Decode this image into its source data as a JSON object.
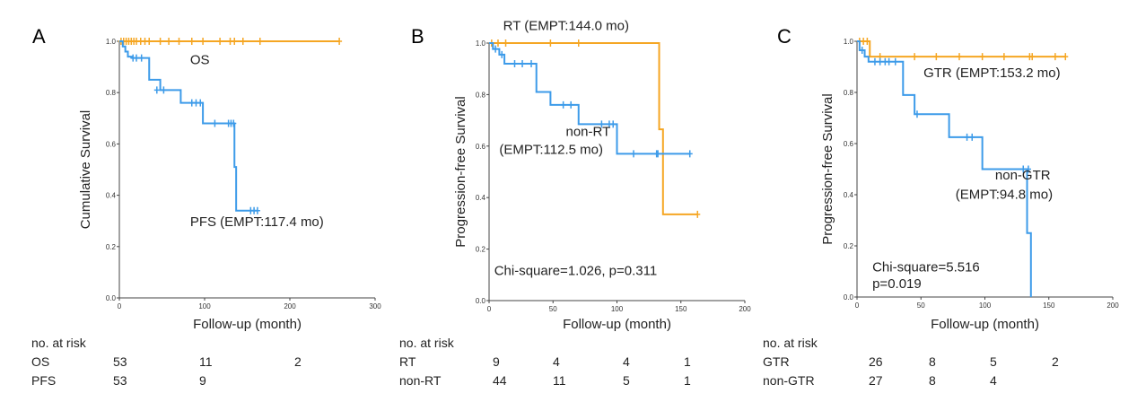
{
  "colors": {
    "orange": "#f5a623",
    "blue": "#3d9be9"
  },
  "chart_data": [
    {
      "type": "line",
      "panel_label": "A",
      "xlabel": "Follow-up (month)",
      "ylabel": "Cumulative Survival",
      "xlim": [
        0,
        300
      ],
      "ylim": [
        0.0,
        1.0
      ],
      "x_ticks": [
        0,
        100,
        200,
        300
      ],
      "x_tick_labels": [
        "0",
        "100",
        "200",
        "300"
      ],
      "y_ticks": [
        0.0,
        0.2,
        0.4,
        0.6,
        0.8,
        1.0
      ],
      "y_tick_labels": [
        "0.0",
        "0.2",
        "0.4",
        "0.6",
        "0.8",
        "1.0"
      ],
      "grid": false,
      "series": [
        {
          "name": "OS",
          "color": "orange",
          "steps": [
            [
              0,
              1.0
            ],
            [
              258,
              1.0
            ]
          ],
          "censored": [
            [
              2,
              1.0
            ],
            [
              5,
              1.0
            ],
            [
              8,
              1.0
            ],
            [
              11,
              1.0
            ],
            [
              14,
              1.0
            ],
            [
              17,
              1.0
            ],
            [
              20,
              1.0
            ],
            [
              25,
              1.0
            ],
            [
              30,
              1.0
            ],
            [
              35,
              1.0
            ],
            [
              48,
              1.0
            ],
            [
              58,
              1.0
            ],
            [
              70,
              1.0
            ],
            [
              85,
              1.0
            ],
            [
              98,
              1.0
            ],
            [
              118,
              1.0
            ],
            [
              130,
              1.0
            ],
            [
              135,
              1.0
            ],
            [
              145,
              1.0
            ],
            [
              165,
              1.0
            ],
            [
              258,
              1.0
            ]
          ]
        },
        {
          "name": "PFS",
          "color": "blue",
          "steps": [
            [
              0,
              1.0
            ],
            [
              4,
              0.98
            ],
            [
              7,
              0.96
            ],
            [
              10,
              0.94
            ],
            [
              15,
              0.935
            ],
            [
              35,
              0.85
            ],
            [
              48,
              0.81
            ],
            [
              72,
              0.76
            ],
            [
              98,
              0.68
            ],
            [
              135,
              0.51
            ],
            [
              137,
              0.34
            ],
            [
              162,
              0.34
            ]
          ],
          "censored": [
            [
              16,
              0.935
            ],
            [
              20,
              0.935
            ],
            [
              26,
              0.935
            ],
            [
              44,
              0.81
            ],
            [
              52,
              0.81
            ],
            [
              85,
              0.76
            ],
            [
              90,
              0.76
            ],
            [
              95,
              0.76
            ],
            [
              112,
              0.68
            ],
            [
              128,
              0.68
            ],
            [
              131,
              0.68
            ],
            [
              134,
              0.68
            ],
            [
              154,
              0.34
            ],
            [
              158,
              0.34
            ],
            [
              162,
              0.34
            ]
          ]
        }
      ],
      "annotations": [
        {
          "text": "OS",
          "x": 83,
          "y": 0.91
        },
        {
          "text": "PFS (EMPT:117.4 mo)",
          "x": 83,
          "y": 0.28
        }
      ],
      "risk_table": {
        "title": "no. at risk",
        "rows": [
          {
            "label": "OS",
            "values": [
              "53",
              "11",
              "2"
            ]
          },
          {
            "label": "PFS",
            "values": [
              "53",
              "9",
              ""
            ]
          }
        ]
      }
    },
    {
      "type": "line",
      "panel_label": "B",
      "xlabel": "Follow-up (month)",
      "ylabel": "Progression-free Survival",
      "xlim": [
        0,
        200
      ],
      "ylim": [
        0.0,
        1.0
      ],
      "x_ticks": [
        0,
        50,
        100,
        150,
        200
      ],
      "x_tick_labels": [
        "0",
        "50",
        "100",
        "150",
        "200"
      ],
      "y_ticks": [
        0.0,
        0.2,
        0.4,
        0.6,
        0.8,
        1.0
      ],
      "y_tick_labels": [
        "0.0",
        "0.2",
        "0.4",
        "0.6",
        "0.8",
        "1.0"
      ],
      "grid": false,
      "series": [
        {
          "name": "RT",
          "color": "orange",
          "steps": [
            [
              0,
              1.0
            ],
            [
              133,
              1.0
            ],
            [
              133,
              0.665
            ],
            [
              136,
              0.665
            ],
            [
              136,
              0.335
            ],
            [
              163,
              0.335
            ]
          ],
          "censored": [
            [
              2,
              1.0
            ],
            [
              7,
              1.0
            ],
            [
              13,
              1.0
            ],
            [
              48,
              1.0
            ],
            [
              70,
              1.0
            ],
            [
              163,
              0.335
            ]
          ]
        },
        {
          "name": "non-RT",
          "color": "blue",
          "steps": [
            [
              0,
              1.0
            ],
            [
              3,
              0.977
            ],
            [
              8,
              0.955
            ],
            [
              12,
              0.92
            ],
            [
              37,
              0.81
            ],
            [
              48,
              0.76
            ],
            [
              70,
              0.685
            ],
            [
              100,
              0.57
            ],
            [
              157,
              0.57
            ]
          ],
          "censored": [
            [
              5,
              0.977
            ],
            [
              10,
              0.955
            ],
            [
              20,
              0.92
            ],
            [
              26,
              0.92
            ],
            [
              33,
              0.92
            ],
            [
              58,
              0.76
            ],
            [
              64,
              0.76
            ],
            [
              88,
              0.685
            ],
            [
              94,
              0.685
            ],
            [
              97,
              0.685
            ],
            [
              113,
              0.57
            ],
            [
              131,
              0.57
            ],
            [
              132,
              0.57
            ],
            [
              157,
              0.57
            ]
          ]
        }
      ],
      "annotations": [
        {
          "text": "RT (EMPT:144.0 mo)",
          "x": 11,
          "y": 1.05
        },
        {
          "text": "non-RT",
          "x": 60,
          "y": 0.64
        },
        {
          "text": "(EMPT:112.5 mo)",
          "x": 8,
          "y": 0.57
        },
        {
          "text": "Chi-square=1.026, p=0.311",
          "x": 4,
          "y": 0.1
        }
      ],
      "risk_table": {
        "title": "no. at risk",
        "rows": [
          {
            "label": "RT",
            "values": [
              "9",
              "4",
              "4",
              "1"
            ]
          },
          {
            "label": "non-RT",
            "values": [
              "44",
              "11",
              "5",
              "1"
            ]
          }
        ]
      }
    },
    {
      "type": "line",
      "panel_label": "C",
      "xlabel": "Follow-up (month)",
      "ylabel": "Progression-free Survival",
      "xlim": [
        0,
        200
      ],
      "ylim": [
        0.0,
        1.0
      ],
      "x_ticks": [
        0,
        50,
        100,
        150,
        200
      ],
      "x_tick_labels": [
        "0",
        "50",
        "100",
        "150",
        "200"
      ],
      "y_ticks": [
        0.0,
        0.2,
        0.4,
        0.6,
        0.8,
        1.0
      ],
      "y_tick_labels": [
        "0.0",
        "0.2",
        "0.4",
        "0.6",
        "0.8",
        "1.0"
      ],
      "grid": false,
      "series": [
        {
          "name": "GTR",
          "color": "orange",
          "steps": [
            [
              0,
              1.0
            ],
            [
              10,
              1.0
            ],
            [
              10,
              0.94
            ],
            [
              163,
              0.94
            ]
          ],
          "censored": [
            [
              2,
              1.0
            ],
            [
              5,
              1.0
            ],
            [
              8,
              1.0
            ],
            [
              18,
              0.94
            ],
            [
              45,
              0.94
            ],
            [
              62,
              0.94
            ],
            [
              80,
              0.94
            ],
            [
              98,
              0.94
            ],
            [
              115,
              0.94
            ],
            [
              135,
              0.94
            ],
            [
              137,
              0.94
            ],
            [
              155,
              0.94
            ],
            [
              163,
              0.94
            ]
          ]
        },
        {
          "name": "non-GTR",
          "color": "blue",
          "steps": [
            [
              0,
              1.0
            ],
            [
              2,
              0.965
            ],
            [
              6,
              0.94
            ],
            [
              9,
              0.92
            ],
            [
              36,
              0.79
            ],
            [
              45,
              0.715
            ],
            [
              72,
              0.625
            ],
            [
              98,
              0.5
            ],
            [
              133,
              0.25
            ],
            [
              136,
              0.0
            ]
          ],
          "censored": [
            [
              4,
              0.965
            ],
            [
              14,
              0.92
            ],
            [
              18,
              0.92
            ],
            [
              22,
              0.92
            ],
            [
              25,
              0.92
            ],
            [
              30,
              0.92
            ],
            [
              47,
              0.715
            ],
            [
              86,
              0.625
            ],
            [
              90,
              0.625
            ],
            [
              130,
              0.5
            ],
            [
              134,
              0.5
            ]
          ]
        }
      ],
      "annotations": [
        {
          "text": "GTR (EMPT:153.2 mo)",
          "x": 52,
          "y": 0.86
        },
        {
          "text": "non-GTR",
          "x": 108,
          "y": 0.46
        },
        {
          "text": "(EMPT:94.8 mo)",
          "x": 77,
          "y": 0.385
        },
        {
          "text": "Chi-square=5.516",
          "x": 12,
          "y": 0.1
        },
        {
          "text": "p=0.019",
          "x": 12,
          "y": 0.035
        }
      ],
      "risk_table": {
        "title": "no. at risk",
        "rows": [
          {
            "label": "GTR",
            "values": [
              "26",
              "8",
              "5",
              "2"
            ]
          },
          {
            "label": "non-GTR",
            "values": [
              "27",
              "8",
              "4",
              ""
            ]
          }
        ]
      }
    }
  ]
}
